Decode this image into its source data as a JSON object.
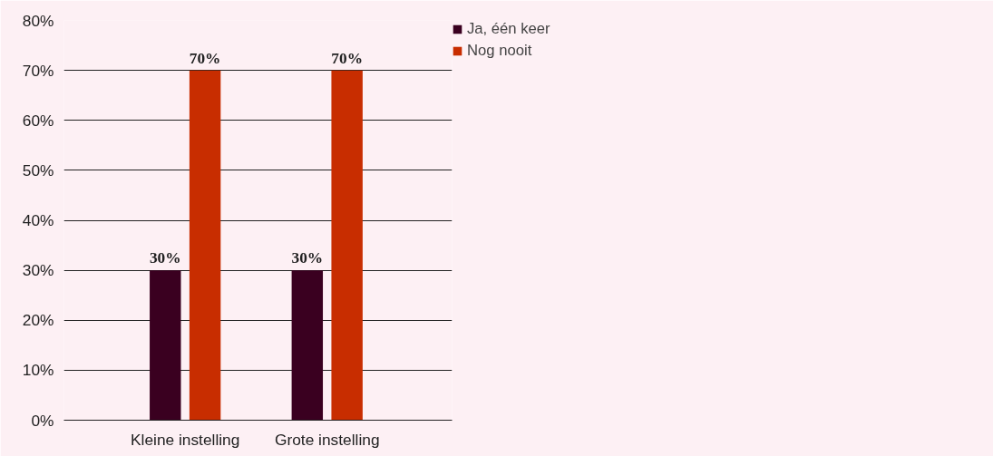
{
  "chart_data": {
    "type": "bar",
    "categories": [
      "Kleine instelling",
      "Grote instelling"
    ],
    "series": [
      {
        "name": "Ja, één keer",
        "color": "#3a0020",
        "values": [
          30,
          30
        ],
        "value_labels": [
          "30%",
          "30%"
        ]
      },
      {
        "name": "Nog nooit",
        "color": "#c82d00",
        "values": [
          70,
          70
        ],
        "value_labels": [
          "70%",
          "70%"
        ]
      }
    ],
    "ylim": [
      0,
      80
    ],
    "yticks": [
      {
        "value": 0,
        "label": "0%"
      },
      {
        "value": 10,
        "label": "10%"
      },
      {
        "value": 20,
        "label": "20%"
      },
      {
        "value": 30,
        "label": "30%"
      },
      {
        "value": 40,
        "label": "40%"
      },
      {
        "value": 50,
        "label": "50%"
      },
      {
        "value": 60,
        "label": "60%"
      },
      {
        "value": 70,
        "label": "70%"
      },
      {
        "value": 80,
        "label": "80%"
      }
    ],
    "grid": "y",
    "legend": "top right"
  }
}
